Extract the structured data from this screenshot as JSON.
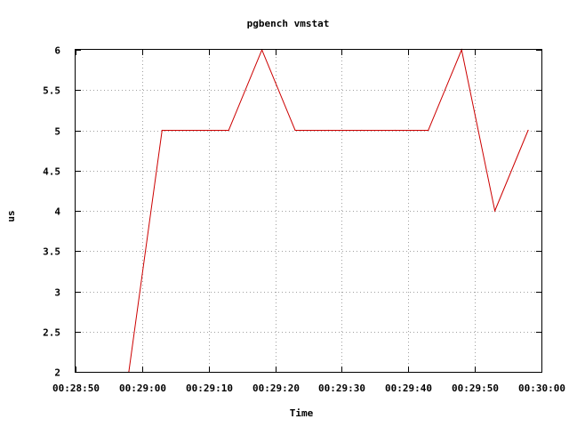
{
  "chart_data": {
    "type": "line",
    "title": "pgbench vmstat",
    "xlabel": "Time",
    "ylabel": "us",
    "grid": true,
    "xlim": [
      "00:28:50",
      "00:30:00"
    ],
    "ylim": [
      2,
      6
    ],
    "x_ticks": [
      "00:28:50",
      "00:29:00",
      "00:29:10",
      "00:29:20",
      "00:29:30",
      "00:29:40",
      "00:29:50",
      "00:30:00"
    ],
    "y_ticks": [
      "2",
      "2.5",
      "3",
      "3.5",
      "4",
      "4.5",
      "5",
      "5.5",
      "6"
    ],
    "series": [
      {
        "color": "#cc0000",
        "x": [
          "00:28:58",
          "00:29:03",
          "00:29:13",
          "00:29:18",
          "00:29:23",
          "00:29:28",
          "00:29:33",
          "00:29:38",
          "00:29:43",
          "00:29:48",
          "00:29:53",
          "00:29:58"
        ],
        "y": [
          2,
          5,
          5,
          6,
          5,
          5,
          5,
          5,
          5,
          6,
          4,
          5
        ]
      }
    ]
  }
}
